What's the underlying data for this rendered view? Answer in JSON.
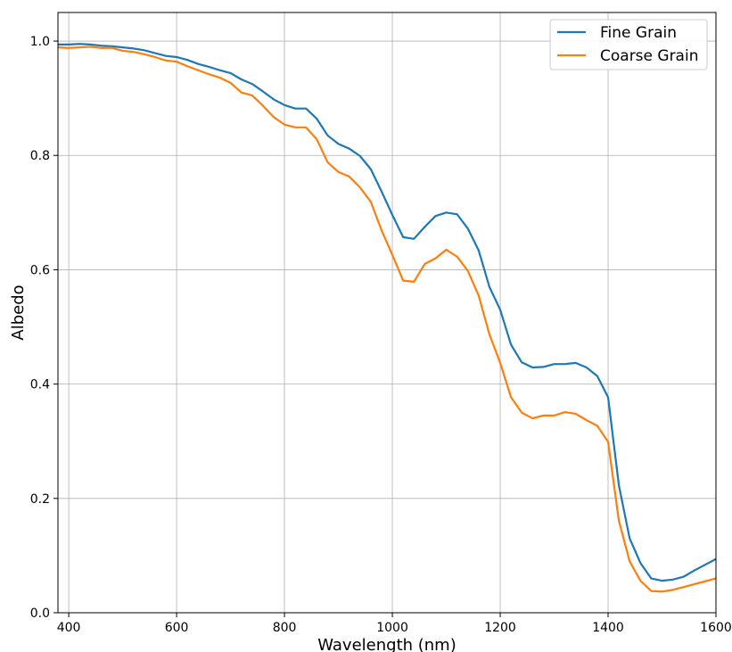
{
  "chart_data": {
    "type": "line",
    "xlabel": "Wavelength (nm)",
    "ylabel": "Albedo",
    "xlim": [
      380,
      1600
    ],
    "ylim": [
      0.0,
      1.05
    ],
    "grid": true,
    "legend_position": "top-right",
    "x_ticks": [
      400,
      600,
      800,
      1000,
      1200,
      1400,
      1600
    ],
    "y_ticks": [
      0.0,
      0.2,
      0.4,
      0.6,
      0.8,
      1.0
    ],
    "x_tick_labels": [
      "400",
      "600",
      "800",
      "1000",
      "1200",
      "1400",
      "1600"
    ],
    "y_tick_labels": [
      "0.0",
      "0.2",
      "0.4",
      "0.6",
      "0.8",
      "1.0"
    ],
    "series": [
      {
        "name": "Fine Grain",
        "color": "#1f77b4",
        "x": [
          380,
          400,
          420,
          440,
          460,
          480,
          500,
          520,
          540,
          560,
          580,
          600,
          620,
          640,
          660,
          680,
          700,
          720,
          740,
          760,
          780,
          800,
          820,
          840,
          860,
          880,
          900,
          920,
          940,
          960,
          980,
          1000,
          1020,
          1040,
          1060,
          1080,
          1100,
          1120,
          1140,
          1160,
          1180,
          1200,
          1220,
          1240,
          1260,
          1280,
          1300,
          1320,
          1340,
          1360,
          1380,
          1400,
          1420,
          1440,
          1460,
          1480,
          1500,
          1520,
          1540,
          1560,
          1580,
          1600
        ],
        "y": [
          0.994,
          0.994,
          0.995,
          0.994,
          0.992,
          0.991,
          0.989,
          0.987,
          0.984,
          0.979,
          0.974,
          0.972,
          0.967,
          0.96,
          0.955,
          0.949,
          0.944,
          0.933,
          0.925,
          0.912,
          0.898,
          0.888,
          0.882,
          0.882,
          0.864,
          0.835,
          0.82,
          0.812,
          0.799,
          0.776,
          0.737,
          0.696,
          0.657,
          0.654,
          0.675,
          0.694,
          0.7,
          0.697,
          0.672,
          0.634,
          0.57,
          0.53,
          0.469,
          0.438,
          0.429,
          0.43,
          0.435,
          0.435,
          0.437,
          0.429,
          0.414,
          0.377,
          0.223,
          0.13,
          0.087,
          0.06,
          0.056,
          0.058,
          0.063,
          0.074,
          0.084,
          0.094
        ]
      },
      {
        "name": "Coarse Grain",
        "color": "#ff7f0e",
        "x": [
          380,
          400,
          420,
          440,
          460,
          480,
          500,
          520,
          540,
          560,
          580,
          600,
          620,
          640,
          660,
          680,
          700,
          720,
          740,
          760,
          780,
          800,
          820,
          840,
          860,
          880,
          900,
          920,
          940,
          960,
          980,
          1000,
          1020,
          1040,
          1060,
          1080,
          1100,
          1120,
          1140,
          1160,
          1180,
          1200,
          1220,
          1240,
          1260,
          1280,
          1300,
          1320,
          1340,
          1360,
          1380,
          1400,
          1420,
          1440,
          1460,
          1480,
          1500,
          1520,
          1540,
          1560,
          1580,
          1600
        ],
        "y": [
          0.989,
          0.988,
          0.989,
          0.99,
          0.988,
          0.988,
          0.983,
          0.981,
          0.977,
          0.972,
          0.966,
          0.964,
          0.956,
          0.949,
          0.942,
          0.936,
          0.927,
          0.91,
          0.905,
          0.887,
          0.867,
          0.854,
          0.849,
          0.849,
          0.828,
          0.788,
          0.771,
          0.763,
          0.744,
          0.719,
          0.669,
          0.626,
          0.581,
          0.579,
          0.61,
          0.62,
          0.635,
          0.623,
          0.598,
          0.555,
          0.487,
          0.437,
          0.377,
          0.35,
          0.34,
          0.345,
          0.345,
          0.351,
          0.348,
          0.337,
          0.327,
          0.299,
          0.161,
          0.09,
          0.056,
          0.038,
          0.037,
          0.04,
          0.045,
          0.05,
          0.055,
          0.06
        ]
      }
    ]
  }
}
